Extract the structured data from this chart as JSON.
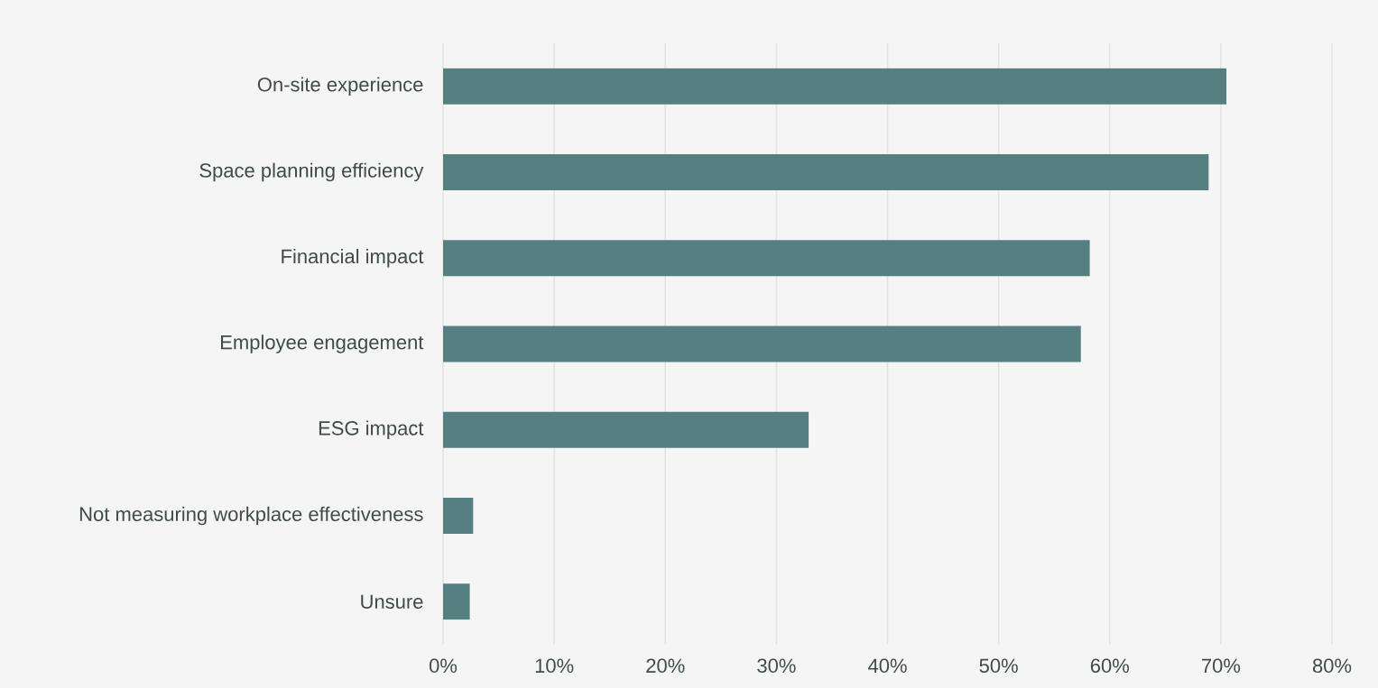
{
  "chart_data": {
    "type": "bar",
    "orientation": "horizontal",
    "categories": [
      "On-site experience",
      "Space planning efficiency",
      "Financial impact",
      "Employee engagement",
      "ESG impact",
      "Not measuring workplace effectiveness",
      "Unsure"
    ],
    "values": [
      70.5,
      68.9,
      58.2,
      57.4,
      32.9,
      2.7,
      2.4
    ],
    "color": "#557f80",
    "xlim": [
      0,
      80
    ],
    "xticks": [
      {
        "value": 0,
        "label": "0%"
      },
      {
        "value": 10,
        "label": "10%"
      },
      {
        "value": 20,
        "label": "20%"
      },
      {
        "value": 30,
        "label": "30%"
      },
      {
        "value": 40,
        "label": "40%"
      },
      {
        "value": 50,
        "label": "50%"
      },
      {
        "value": 60,
        "label": "60%"
      },
      {
        "value": 70,
        "label": "70%"
      },
      {
        "value": 80,
        "label": "80%"
      }
    ],
    "grid": "x"
  }
}
